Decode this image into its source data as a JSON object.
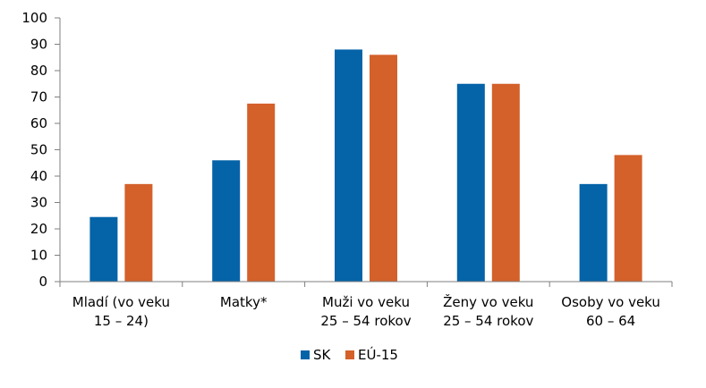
{
  "chart_data": {
    "type": "bar",
    "categories": [
      [
        "Mladí (vo veku",
        "15 – 24)"
      ],
      [
        "Matky*"
      ],
      [
        "Muži vo veku",
        "25 – 54 rokov"
      ],
      [
        "Ženy vo veku",
        "25 – 54 rokov"
      ],
      [
        "Osoby vo veku",
        "60 – 64"
      ]
    ],
    "series": [
      {
        "name": "SK",
        "color": "#0563A8",
        "values": [
          24.5,
          46,
          88,
          75,
          37
        ]
      },
      {
        "name": "EÚ-15",
        "color": "#D4602A",
        "values": [
          37,
          67.5,
          86,
          75,
          48
        ]
      }
    ],
    "ylim": [
      0,
      100
    ],
    "yticks": [
      0,
      10,
      20,
      30,
      40,
      50,
      60,
      70,
      80,
      90,
      100
    ],
    "grid": false,
    "legend_position": "bottom"
  }
}
